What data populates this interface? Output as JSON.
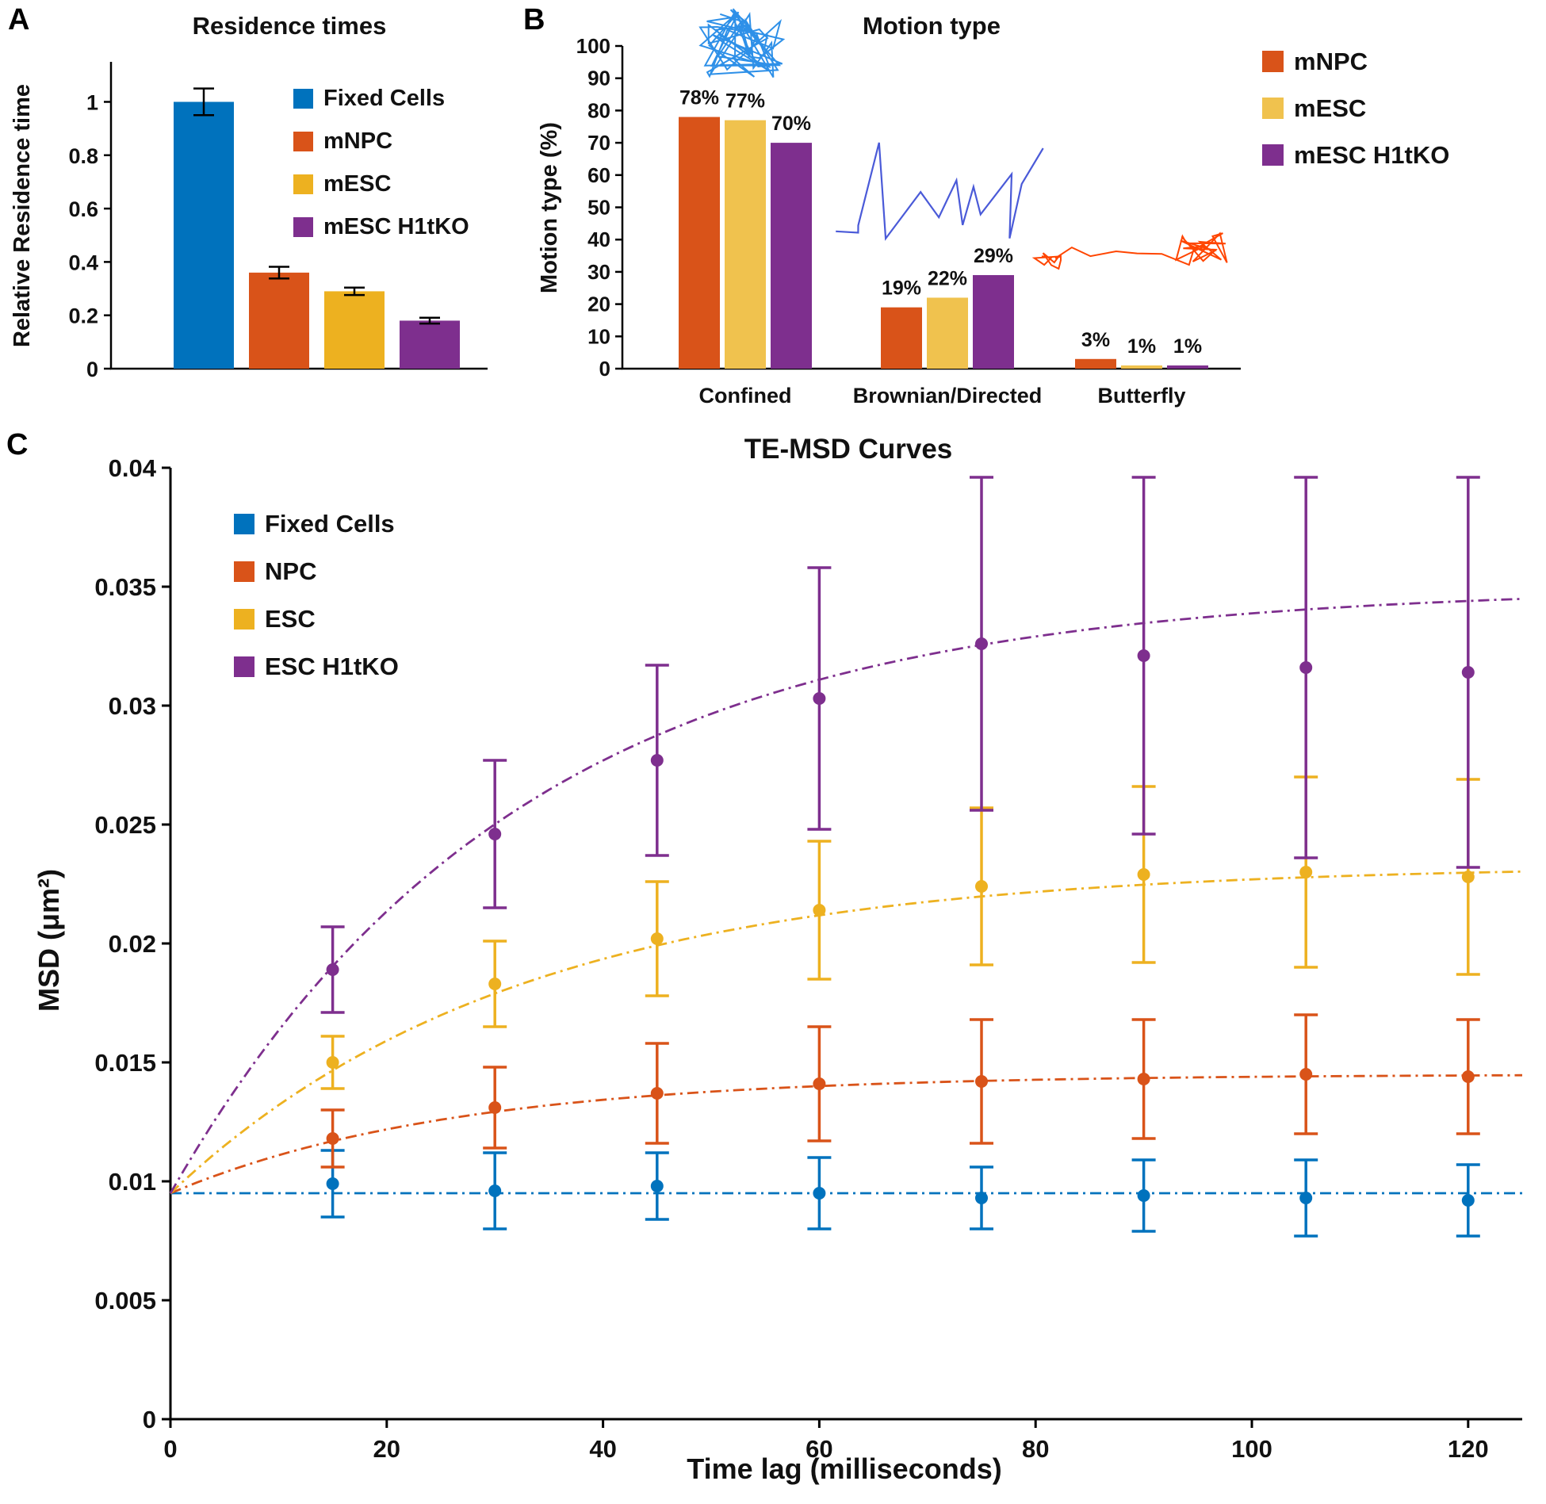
{
  "panels": {
    "A": {
      "letter": "A",
      "title": "Residence times",
      "ylabel": "Relative Residence time",
      "legend": [
        {
          "label": "Fixed Cells",
          "color": "#0072BD"
        },
        {
          "label": "mNPC",
          "color": "#D95319"
        },
        {
          "label": "mESC",
          "color": "#EDB120"
        },
        {
          "label": "mESC H1tKO",
          "color": "#7E2F8E"
        }
      ]
    },
    "B": {
      "letter": "B",
      "title": "Motion type",
      "ylabel": "Motion type (%)",
      "legend": [
        {
          "label": "mNPC",
          "color": "#D95319"
        },
        {
          "label": "mESC",
          "color": "#F0C24E"
        },
        {
          "label": "mESC H1tKO",
          "color": "#7E2F8E"
        }
      ],
      "trajectory_icons": [
        {
          "name": "confined-trajectory-icon",
          "color": "#2E90E8"
        },
        {
          "name": "brownian-trajectory-icon",
          "color": "#4A5AD8"
        },
        {
          "name": "butterfly-trajectory-icon",
          "color": "#FF4500"
        }
      ]
    },
    "C": {
      "letter": "C",
      "title": "TE-MSD Curves",
      "ylabel": "MSD (μm²)",
      "xlabel": "Time lag (milliseconds)",
      "legend": [
        {
          "label": "Fixed Cells",
          "color": "#0072BD"
        },
        {
          "label": "NPC",
          "color": "#D95319"
        },
        {
          "label": "ESC",
          "color": "#EDB120"
        },
        {
          "label": "ESC H1tKO",
          "color": "#7E2F8E"
        }
      ]
    }
  },
  "chart_data": [
    {
      "panel": "A",
      "type": "bar",
      "title": "Residence times",
      "ylabel": "Relative Residence time",
      "categories": [
        "Fixed Cells",
        "mNPC",
        "mESC",
        "mESC H1tKO"
      ],
      "values": [
        1.0,
        0.36,
        0.29,
        0.18
      ],
      "errors": [
        0.05,
        0.022,
        0.014,
        0.011
      ],
      "colors": [
        "#0072BD",
        "#D95319",
        "#EDB120",
        "#7E2F8E"
      ],
      "ylim": [
        0,
        1.15
      ],
      "yticks": [
        0,
        0.2,
        0.4,
        0.6,
        0.8,
        1
      ],
      "legend_position": "upper-right-inside"
    },
    {
      "panel": "B",
      "type": "bar",
      "title": "Motion type",
      "ylabel": "Motion type (%)",
      "categories": [
        "Confined",
        "Brownian/Directed",
        "Butterfly"
      ],
      "series": [
        {
          "name": "mNPC",
          "color": "#D95319",
          "values": [
            78,
            19,
            3
          ],
          "labels": [
            "78%",
            "19%",
            "3%"
          ]
        },
        {
          "name": "mESC",
          "color": "#F0C24E",
          "values": [
            77,
            22,
            1
          ],
          "labels": [
            "77%",
            "22%",
            "1%"
          ]
        },
        {
          "name": "mESC H1tKO",
          "color": "#7E2F8E",
          "values": [
            70,
            29,
            1
          ],
          "labels": [
            "70%",
            "29%",
            "1%"
          ]
        }
      ],
      "ylim": [
        0,
        100
      ],
      "yticks": [
        0,
        10,
        20,
        30,
        40,
        50,
        60,
        70,
        80,
        90,
        100
      ],
      "legend_position": "right"
    },
    {
      "panel": "C",
      "type": "line",
      "title": "TE-MSD Curves",
      "xlabel": "Time lag (milliseconds)",
      "ylabel": "MSD (μm²)",
      "x": [
        15,
        30,
        45,
        60,
        75,
        90,
        105,
        120
      ],
      "xlim": [
        0,
        125
      ],
      "ylim": [
        0,
        0.04
      ],
      "xticks": [
        0,
        20,
        40,
        60,
        80,
        100,
        120
      ],
      "yticks": [
        0,
        0.005,
        0.01,
        0.015,
        0.02,
        0.025,
        0.03,
        0.035,
        0.04
      ],
      "grid": false,
      "legend_position": "upper-left-inside",
      "series": [
        {
          "name": "Fixed Cells",
          "color": "#0072BD",
          "y": [
            0.0099,
            0.0096,
            0.0098,
            0.0095,
            0.0093,
            0.0094,
            0.0093,
            0.0092
          ],
          "err": [
            0.0014,
            0.0016,
            0.0014,
            0.0015,
            0.0013,
            0.0015,
            0.0016,
            0.0015
          ],
          "fit": {
            "model": "constant",
            "value": 0.0095
          }
        },
        {
          "name": "NPC",
          "color": "#D95319",
          "y": [
            0.0118,
            0.0131,
            0.0137,
            0.0141,
            0.0142,
            0.0143,
            0.0145,
            0.0144
          ],
          "err": [
            0.0012,
            0.0017,
            0.0021,
            0.0024,
            0.0026,
            0.0025,
            0.0025,
            0.0024
          ],
          "fit": {
            "model": "saturating",
            "y0": 0.0095,
            "plateau": 0.0145,
            "tau": 26
          }
        },
        {
          "name": "ESC",
          "color": "#EDB120",
          "y": [
            0.015,
            0.0183,
            0.0202,
            0.0214,
            0.0224,
            0.0229,
            0.023,
            0.0228
          ],
          "err": [
            0.0011,
            0.0018,
            0.0024,
            0.0029,
            0.0033,
            0.0037,
            0.004,
            0.0041
          ],
          "fit": {
            "model": "saturating",
            "y0": 0.0095,
            "plateau": 0.0233,
            "tau": 32
          }
        },
        {
          "name": "ESC H1tKO",
          "color": "#7E2F8E",
          "y": [
            0.0189,
            0.0246,
            0.0277,
            0.0303,
            0.0326,
            0.0321,
            0.0316,
            0.0314
          ],
          "err": [
            0.0018,
            0.0031,
            0.004,
            0.0055,
            0.007,
            0.0075,
            0.008,
            0.0082
          ],
          "fit": {
            "model": "saturating",
            "y0": 0.0095,
            "plateau": 0.035,
            "tau": 32
          }
        }
      ]
    }
  ]
}
